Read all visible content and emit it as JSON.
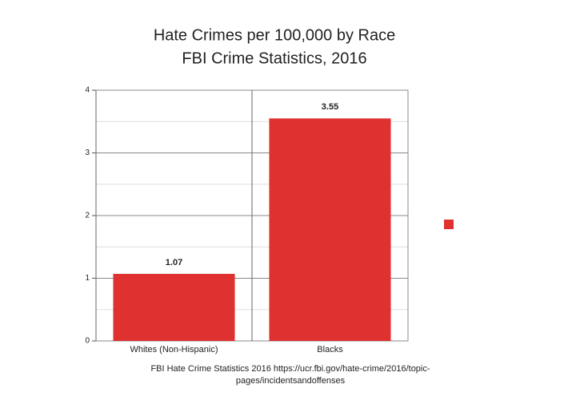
{
  "chart_data": {
    "type": "bar",
    "title": "Hate Crimes per 100,000 by Race",
    "subtitle": "FBI Crime Statistics, 2016",
    "categories": [
      "Whites (Non-Hispanic)",
      "Blacks"
    ],
    "values": [
      1.07,
      3.55
    ],
    "color": "#e03131",
    "ylim": [
      0,
      4
    ],
    "yticks": [
      0,
      1,
      2,
      3,
      4
    ],
    "grid": true,
    "minor_grid": true,
    "legend": "right",
    "source": [
      "FBI Hate Crime Statistics 2016 https://ucr.fbi.gov/hate-crime/2016/topic-",
      "pages/incidentsandoffenses"
    ]
  }
}
